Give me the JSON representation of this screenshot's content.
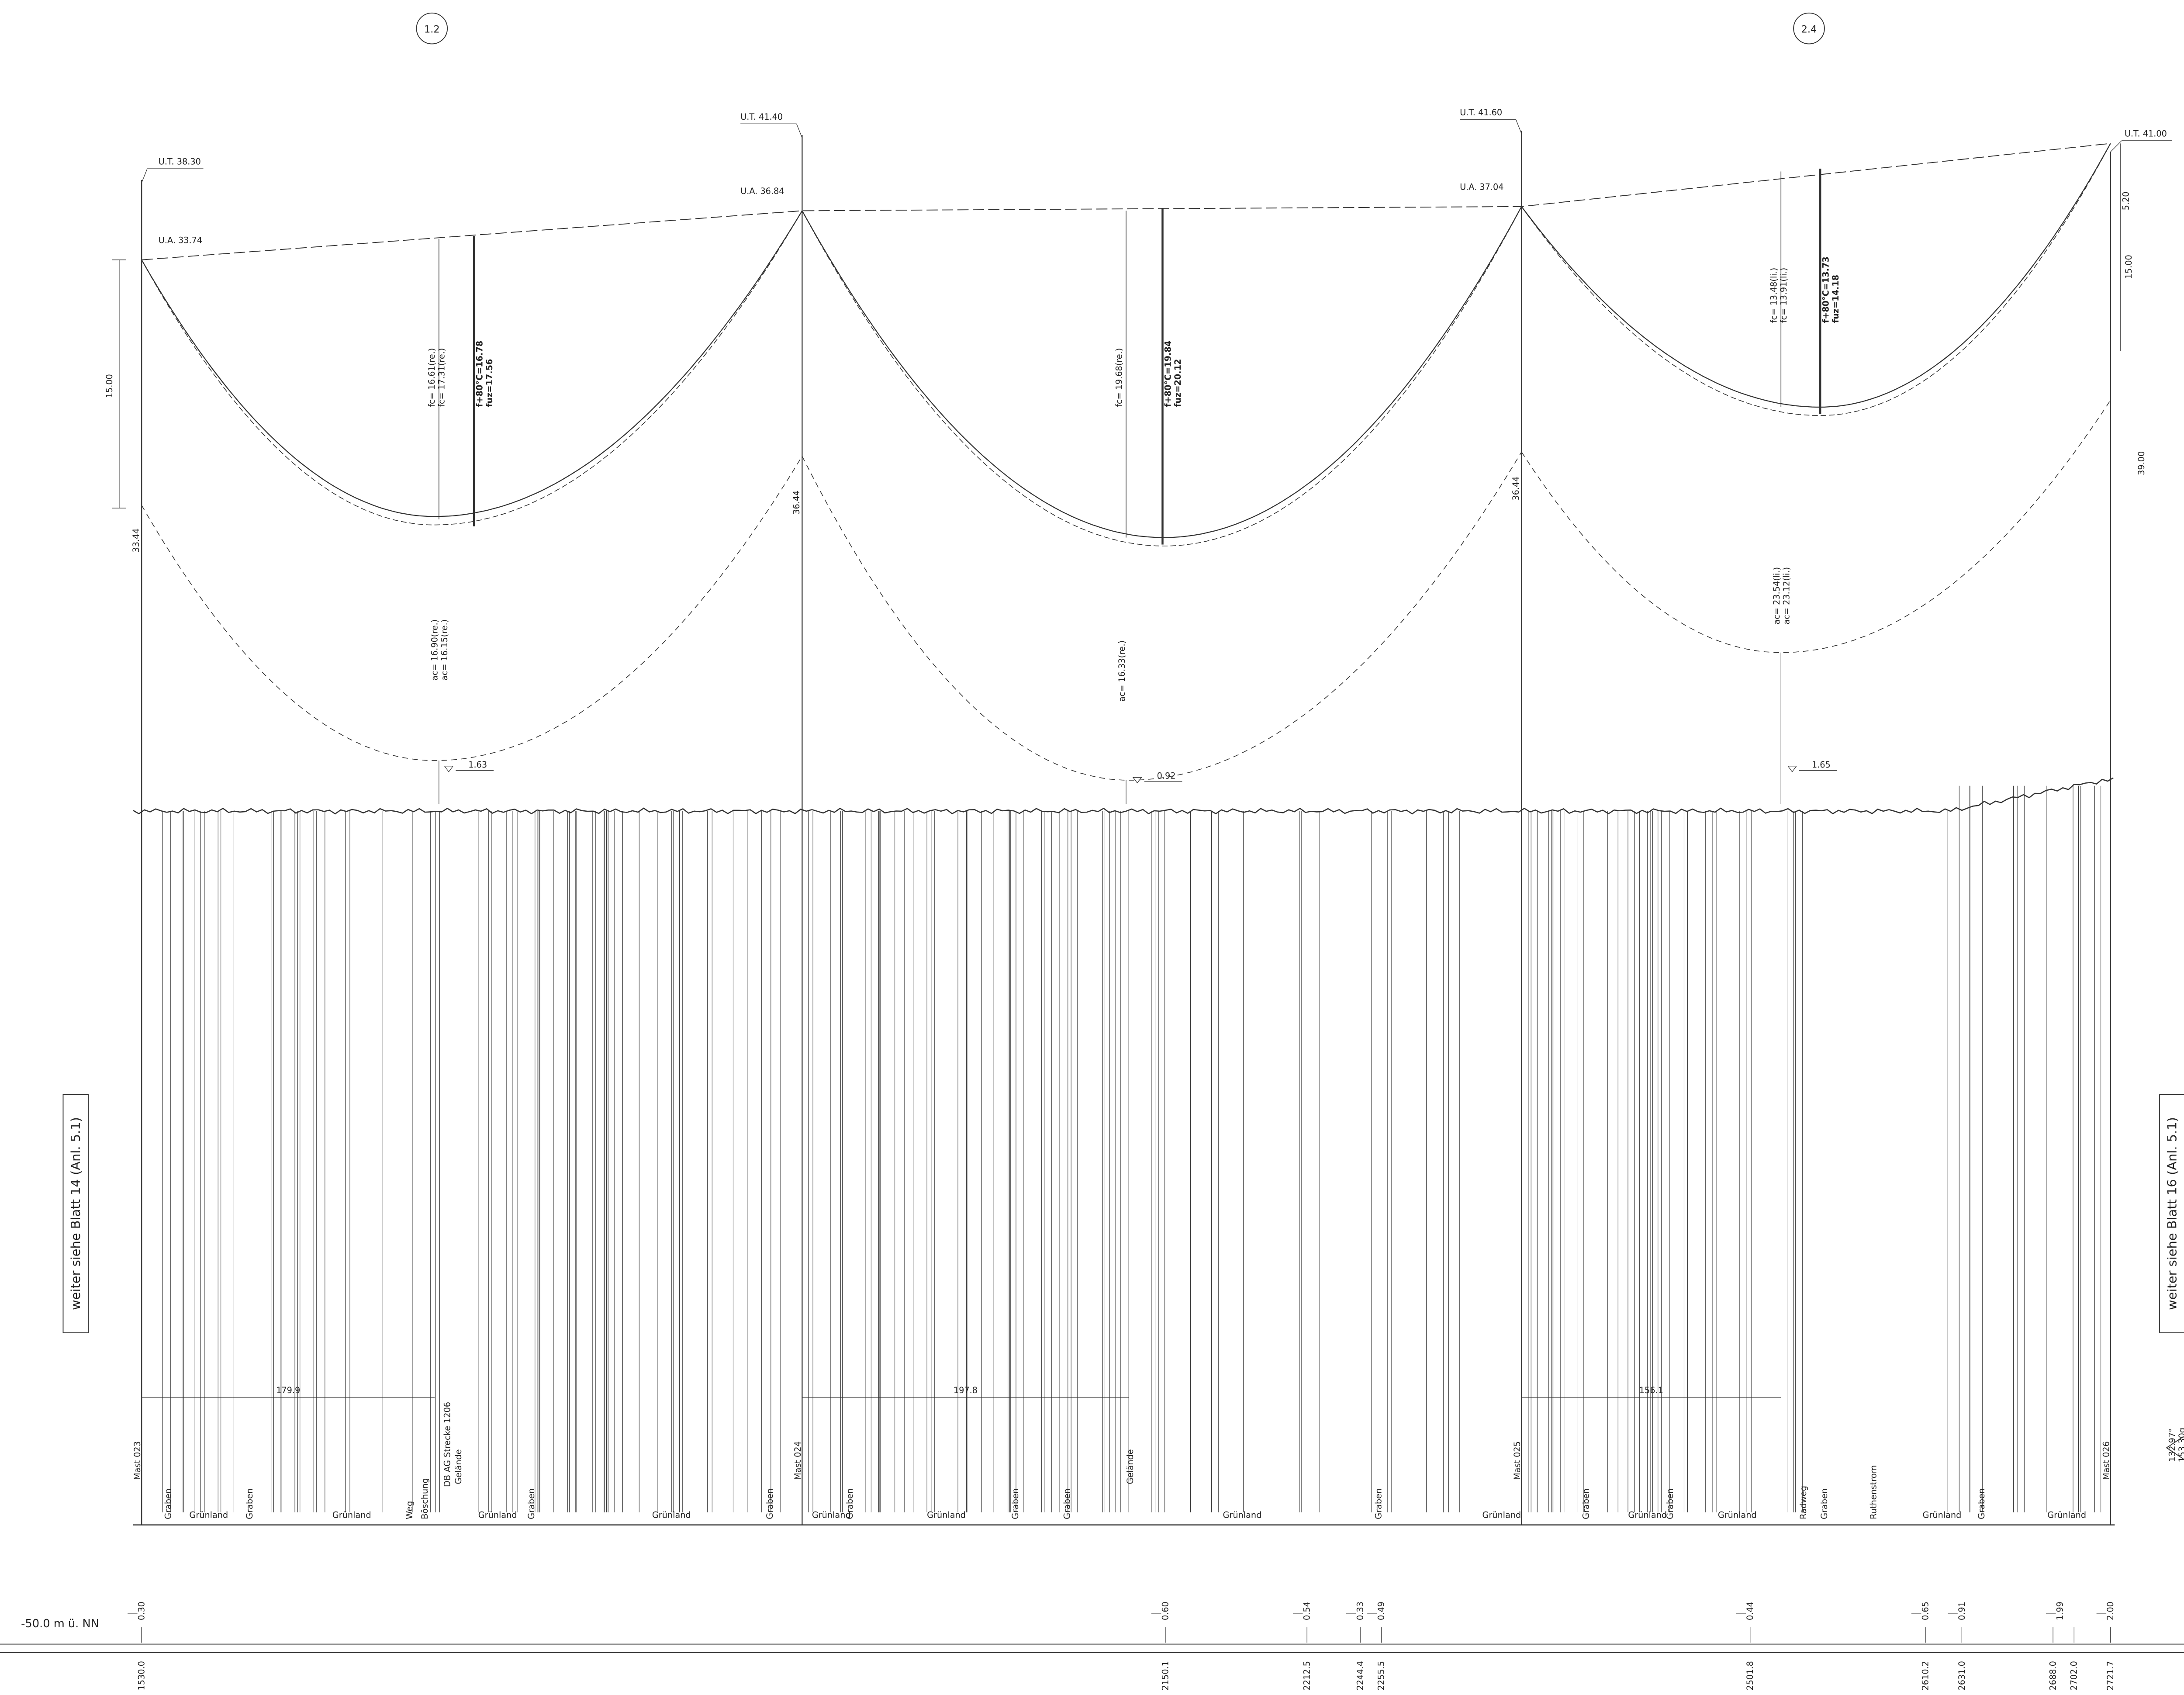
{
  "sheet_refs": {
    "left": "weiter siehe Blatt 14 (Anl. 5.1)",
    "right": "weiter siehe Blatt 16 (Anl. 5.1)"
  },
  "markers": [
    "1.2",
    "2.4"
  ],
  "datum": "-50.0 m ü. NN",
  "angle": [
    "132.97°",
    "153.30g"
  ],
  "masts": [
    {
      "name": "Mast 023",
      "ut": "U.T. 38.30",
      "ua": "U.A. 33.74",
      "height": "33.44"
    },
    {
      "name": "Mast 024",
      "ut": "U.T. 41.40",
      "ua": "U.A. 36.84",
      "height": "36.44"
    },
    {
      "name": "Mast 025",
      "ut": "U.T. 41.60",
      "ua": "U.A. 37.04",
      "height": "36.44"
    },
    {
      "name": "Mast 026",
      "ut": "U.T. 41.00",
      "height": "39.00"
    }
  ],
  "spans": [
    {
      "length": "179.9",
      "fc": [
        "fc= 16.61(re.)",
        "fc= 17.31(re.)"
      ],
      "f80": "f+80°C=16.78",
      "fuz": "fuz=17.56",
      "ac": [
        "ac= 16.90(re.)",
        "ac= 16.15(re.)"
      ],
      "clearance": "1.63"
    },
    {
      "length": "197.8",
      "fc": [
        "fc= 19.68(re.)"
      ],
      "f80": "f+80°C=19.84",
      "fuz": "fuz=20.12",
      "ac": [
        "ac= 16.33(re.)"
      ],
      "clearance": "0.92"
    },
    {
      "length": "156.1",
      "fc": [
        "fc= 13.48(li.)",
        "fc= 13.91(li.)"
      ],
      "f80": "f+80°C=13.73",
      "fuz": "fuz=14.18",
      "ac": [
        "ac= 23.54(li.)",
        "ac= 23.12(li.)"
      ],
      "clearance": "1.65"
    }
  ],
  "dims": [
    "15.00",
    "5.20",
    "15.00"
  ],
  "land_use": [
    "Grünland",
    "Grünland",
    "Grünland",
    "Grünland",
    "Grünland",
    "Grünland",
    "Grünland",
    "Grünland",
    "Grünland",
    "Grünland",
    "Grünland",
    "Grünland"
  ],
  "ditches": [
    "Graben",
    "Graben",
    "Graben",
    "Graben",
    "Graben",
    "Graben",
    "Graben",
    "Graben",
    "Graben",
    "Graben",
    "Graben",
    "Graben"
  ],
  "features": [
    "DB AG Strecke 1206",
    "Gelände",
    "Gelände",
    "Ruthenstrom",
    "Weg",
    "Radweg",
    "Böschung"
  ],
  "heights": [
    "0.30",
    "0.60",
    "0.54",
    "0.33",
    "0.49",
    "0.44",
    "0.65",
    "0.91",
    "1.99",
    "2.00"
  ],
  "stations": [
    "1530.0",
    "2150.1",
    "2212.5",
    "2244.4",
    "2255.5",
    "2501.8",
    "2610.2",
    "2631.0",
    "2688.0",
    "2702.0",
    "2721.7"
  ]
}
